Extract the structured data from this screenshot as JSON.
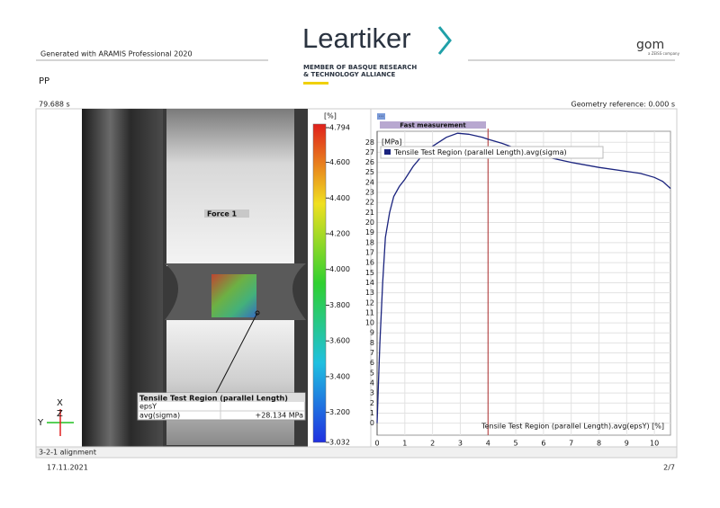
{
  "header": {
    "generator": "Generated with ARAMIS Professional 2020",
    "logo": "Leartiker",
    "member_line1": "MEMBER OF BASQUE RESEARCH",
    "member_line2": "& TECHNOLOGY ALLIANCE",
    "brand": "gom",
    "brand_sub": "a ZEISS company"
  },
  "project": "PP",
  "stage_time": "79.688 s",
  "geometry_reference": "Geometry reference: 0.000 s",
  "image_panel": {
    "force_label": "Force 1",
    "probe_title": "Tensile Test Region (parallel Length)",
    "probe_rows": [
      [
        "epsY",
        ""
      ],
      [
        "avg(sigma)",
        "+28.134 MPa"
      ]
    ],
    "axes": [
      "X",
      "Y",
      "Z"
    ],
    "colorbar": {
      "unit": "[%]",
      "range": [
        3.032,
        4.794
      ],
      "ticks": [
        {
          "value": 4.794,
          "label": "4.794"
        },
        {
          "value": 4.6,
          "label": "4.600"
        },
        {
          "value": 4.4,
          "label": "4.400"
        },
        {
          "value": 4.2,
          "label": "4.200"
        },
        {
          "value": 4.0,
          "label": "4.000"
        },
        {
          "value": 3.8,
          "label": "3.800"
        },
        {
          "value": 3.6,
          "label": "3.600"
        },
        {
          "value": 3.4,
          "label": "3.400"
        },
        {
          "value": 3.2,
          "label": "3.200"
        },
        {
          "value": 3.032,
          "label": "3.032"
        }
      ]
    }
  },
  "alignment": "3-2-1 alignment",
  "footer": {
    "date": "17.11.2021",
    "page": "2/7"
  },
  "chart_data": {
    "type": "line",
    "menu": "...",
    "stage_label": "Fast measurement",
    "y_unit": "[MPa]",
    "x_label": "Tensile Test Region (parallel Length).avg(epsY) [%]",
    "x": [
      0,
      0.05,
      0.1,
      0.2,
      0.3,
      0.45,
      0.6,
      0.8,
      1.0,
      1.3,
      1.6,
      2.0,
      2.5,
      2.9,
      3.3,
      3.8,
      4.0,
      4.5,
      5.0,
      6.0,
      7.0,
      8.0,
      9.0,
      9.5,
      10.0,
      10.3,
      10.58
    ],
    "series": [
      {
        "name": "Tensile Test Region (parallel Length).avg(sigma)",
        "color": "#1a237e",
        "values": [
          0,
          4,
          8,
          14,
          18.5,
          21,
          22.6,
          23.6,
          24.3,
          25.6,
          26.6,
          27.6,
          28.5,
          28.9,
          28.8,
          28.5,
          28.3,
          27.9,
          27.4,
          26.6,
          26.0,
          25.5,
          25.1,
          24.9,
          24.5,
          24.1,
          23.4
        ]
      }
    ],
    "marker_x": 4,
    "marker_color": "#b03030",
    "xlim": [
      0,
      10.58
    ],
    "ylim": [
      -1.2,
      29.1
    ],
    "xticks": [
      0,
      1,
      2,
      3,
      4,
      5,
      6,
      7,
      8,
      9,
      10
    ],
    "yticks": [
      0,
      1,
      2,
      3,
      4,
      5,
      6,
      7,
      8,
      9,
      10,
      11,
      12,
      13,
      14,
      15,
      16,
      17,
      18,
      19,
      20,
      21,
      22,
      23,
      24,
      25,
      26,
      27,
      28
    ],
    "grid": true
  }
}
